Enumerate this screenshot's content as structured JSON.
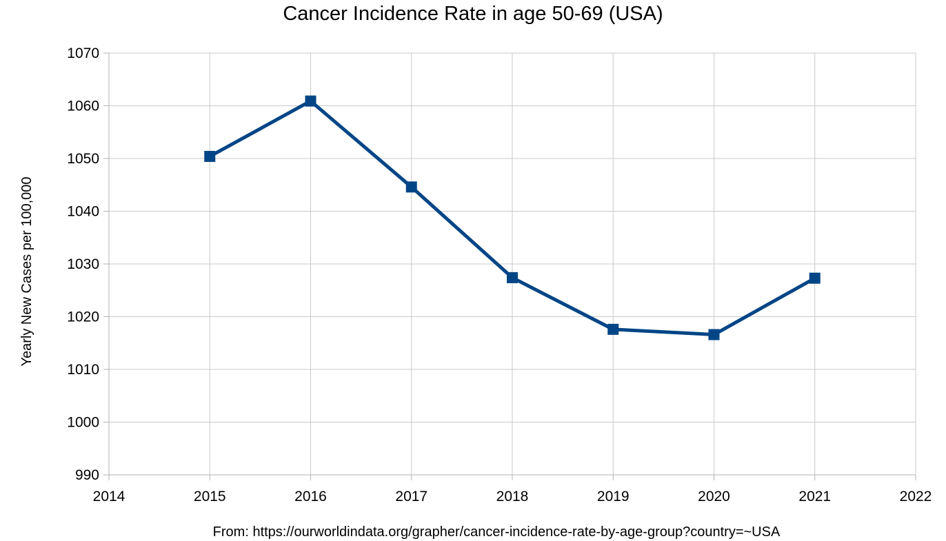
{
  "chart_data": {
    "type": "line",
    "title": "Cancer Incidence Rate in age 50-69 (USA)",
    "xlabel": "",
    "ylabel": "Yearly New Cases per 100,000",
    "xlim": [
      2014,
      2022
    ],
    "ylim": [
      990,
      1070
    ],
    "x_ticks": [
      "2014",
      "2015",
      "2016",
      "2017",
      "2018",
      "2019",
      "2020",
      "2021",
      "2022"
    ],
    "y_ticks": [
      "990",
      "1000",
      "1010",
      "1020",
      "1030",
      "1040",
      "1050",
      "1060",
      "1070"
    ],
    "grid": true,
    "legend": "none",
    "series": [
      {
        "x": [
          2015,
          2016,
          2017,
          2018,
          2019,
          2020,
          2021
        ],
        "y": [
          1050.4,
          1060.9,
          1044.6,
          1027.4,
          1017.6,
          1016.6,
          1027.3
        ],
        "color": "#004586",
        "marker": "square"
      }
    ],
    "source_note": "From: https://ourworldindata.org/grapher/cancer-incidence-rate-by-age-group?country=~USA"
  }
}
